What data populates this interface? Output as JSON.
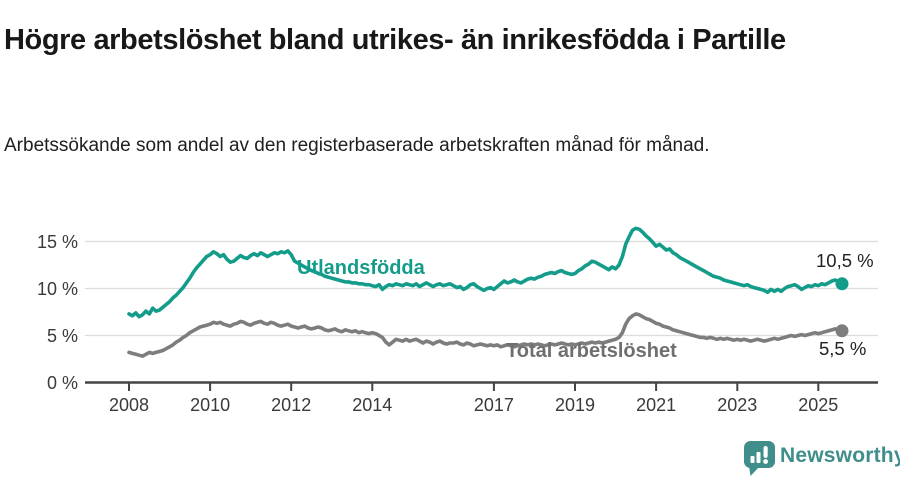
{
  "header": {
    "title": "Högre arbetslöshet bland utrikes- än inrikesfödda i Partille",
    "subtitle": "Arbetssökande som andel av den registerbaserade arbetskraften månad för månad."
  },
  "chart_data": {
    "type": "line",
    "x_unit": "month",
    "x_start_year": 2008,
    "x_end": "2025-08",
    "x_ticks": [
      2008,
      2010,
      2012,
      2014,
      2017,
      2019,
      2021,
      2023,
      2025
    ],
    "y_ticks": [
      0,
      5,
      10,
      15
    ],
    "y_tick_suffix": " %",
    "ylim": [
      0,
      17.5
    ],
    "grid": true,
    "axis_color": "#444444",
    "gridline_color": "#dcdcdc",
    "tick_label_color": "#3a3a3a",
    "series": [
      {
        "id": "utlandsfodda",
        "name": "Utlandsfödda",
        "color": "#149c8b",
        "end_label": "10,5 %",
        "end_value": 10.5,
        "values": [
          7.3,
          7.1,
          7.4,
          7.0,
          7.2,
          7.6,
          7.3,
          7.9,
          7.6,
          7.7,
          8.0,
          8.3,
          8.6,
          9.0,
          9.3,
          9.7,
          10.1,
          10.6,
          11.1,
          11.7,
          12.2,
          12.6,
          13.0,
          13.4,
          13.6,
          13.9,
          13.7,
          13.4,
          13.6,
          13.1,
          12.8,
          12.9,
          13.2,
          13.5,
          13.3,
          13.2,
          13.5,
          13.7,
          13.5,
          13.8,
          13.6,
          13.4,
          13.6,
          13.8,
          13.7,
          13.9,
          13.8,
          14.0,
          13.6,
          12.9,
          12.7,
          12.5,
          12.3,
          12.1,
          11.9,
          11.8,
          11.6,
          11.5,
          11.3,
          11.2,
          11.1,
          11.0,
          10.9,
          10.8,
          10.7,
          10.7,
          10.6,
          10.6,
          10.5,
          10.5,
          10.4,
          10.4,
          10.3,
          10.2,
          10.4,
          9.9,
          10.2,
          10.4,
          10.3,
          10.5,
          10.4,
          10.3,
          10.5,
          10.4,
          10.3,
          10.5,
          10.2,
          10.4,
          10.6,
          10.4,
          10.2,
          10.4,
          10.5,
          10.3,
          10.4,
          10.5,
          10.3,
          10.1,
          10.2,
          9.9,
          10.1,
          10.4,
          10.5,
          10.2,
          10.0,
          9.8,
          10.0,
          10.1,
          9.9,
          10.2,
          10.5,
          10.8,
          10.6,
          10.7,
          10.9,
          10.7,
          10.6,
          10.8,
          11.0,
          11.1,
          11.0,
          11.2,
          11.3,
          11.5,
          11.6,
          11.7,
          11.6,
          11.8,
          11.9,
          11.7,
          11.6,
          11.5,
          11.6,
          11.9,
          12.1,
          12.4,
          12.6,
          12.9,
          12.8,
          12.6,
          12.4,
          12.2,
          12.0,
          12.3,
          12.1,
          12.5,
          13.4,
          14.7,
          15.5,
          16.2,
          16.4,
          16.3,
          16.0,
          15.6,
          15.3,
          14.9,
          14.5,
          14.7,
          14.4,
          14.1,
          14.2,
          13.8,
          13.6,
          13.3,
          13.1,
          12.9,
          12.7,
          12.5,
          12.3,
          12.1,
          11.9,
          11.7,
          11.5,
          11.3,
          11.2,
          11.1,
          10.9,
          10.8,
          10.7,
          10.6,
          10.5,
          10.4,
          10.3,
          10.4,
          10.2,
          10.1,
          10.0,
          9.9,
          9.8,
          9.6,
          9.9,
          9.7,
          9.9,
          9.7,
          10.0,
          10.2,
          10.3,
          10.4,
          10.2,
          9.9,
          10.1,
          10.3,
          10.2,
          10.4,
          10.3,
          10.5,
          10.4,
          10.6,
          10.8,
          10.9,
          10.7,
          10.5
        ]
      },
      {
        "id": "total-arbetsloshet",
        "name": "Total arbetslöshet",
        "color": "#7d7d7d",
        "end_label": "5,5 %",
        "end_value": 5.5,
        "values": [
          3.2,
          3.1,
          3.0,
          2.9,
          2.8,
          3.0,
          3.2,
          3.1,
          3.2,
          3.3,
          3.4,
          3.6,
          3.8,
          4.0,
          4.3,
          4.5,
          4.8,
          5.0,
          5.3,
          5.5,
          5.7,
          5.9,
          6.0,
          6.1,
          6.2,
          6.4,
          6.3,
          6.4,
          6.2,
          6.1,
          6.0,
          6.2,
          6.3,
          6.5,
          6.4,
          6.2,
          6.1,
          6.3,
          6.4,
          6.5,
          6.3,
          6.2,
          6.4,
          6.3,
          6.1,
          6.0,
          6.1,
          6.2,
          6.0,
          5.9,
          5.8,
          5.9,
          6.0,
          5.8,
          5.7,
          5.8,
          5.9,
          5.8,
          5.6,
          5.5,
          5.6,
          5.7,
          5.5,
          5.4,
          5.6,
          5.5,
          5.4,
          5.5,
          5.3,
          5.4,
          5.3,
          5.2,
          5.3,
          5.2,
          5.0,
          4.8,
          4.3,
          4.0,
          4.3,
          4.6,
          4.5,
          4.4,
          4.6,
          4.4,
          4.5,
          4.6,
          4.4,
          4.2,
          4.4,
          4.3,
          4.1,
          4.3,
          4.4,
          4.2,
          4.1,
          4.2,
          4.2,
          4.3,
          4.1,
          4.0,
          4.2,
          4.1,
          3.9,
          4.0,
          4.1,
          4.0,
          3.9,
          4.0,
          3.9,
          4.0,
          3.8,
          3.9,
          4.0,
          3.9,
          3.8,
          3.9,
          4.0,
          4.1,
          4.0,
          4.1,
          4.0,
          4.1,
          4.0,
          3.9,
          4.0,
          4.1,
          4.0,
          4.1,
          4.2,
          4.1,
          4.0,
          4.1,
          4.0,
          4.1,
          4.2,
          4.1,
          4.2,
          4.3,
          4.2,
          4.3,
          4.2,
          4.3,
          4.4,
          4.5,
          4.6,
          4.8,
          5.3,
          6.2,
          6.8,
          7.1,
          7.3,
          7.2,
          7.0,
          6.8,
          6.7,
          6.5,
          6.3,
          6.2,
          6.0,
          5.9,
          5.8,
          5.6,
          5.5,
          5.4,
          5.3,
          5.2,
          5.1,
          5.0,
          4.9,
          4.8,
          4.8,
          4.7,
          4.8,
          4.7,
          4.6,
          4.7,
          4.6,
          4.7,
          4.6,
          4.5,
          4.6,
          4.5,
          4.6,
          4.5,
          4.4,
          4.5,
          4.6,
          4.5,
          4.4,
          4.5,
          4.6,
          4.7,
          4.6,
          4.7,
          4.8,
          4.9,
          5.0,
          4.9,
          5.0,
          5.1,
          5.0,
          5.1,
          5.2,
          5.3,
          5.2,
          5.3,
          5.4,
          5.5,
          5.6,
          5.7,
          5.6,
          5.5
        ]
      }
    ]
  },
  "footer": {
    "brand": "Newsworthy",
    "brand_color": "#3f8e8c",
    "logo_icon": "bar-chart-speech-bubble-icon"
  }
}
